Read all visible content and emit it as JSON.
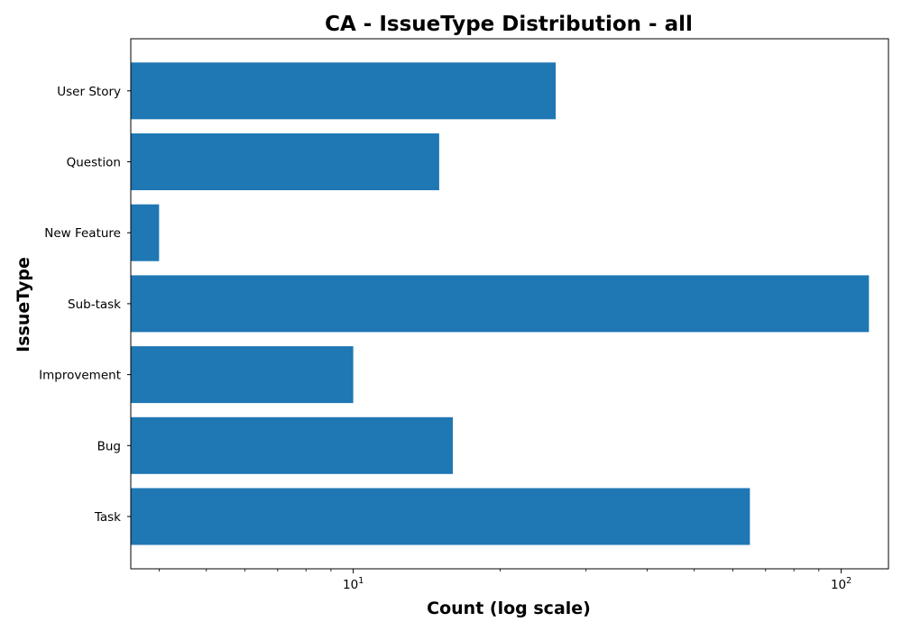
{
  "chart_data": {
    "type": "bar",
    "orientation": "horizontal",
    "title": "CA - IssueType Distribution - all",
    "xlabel": "Count (log scale)",
    "ylabel": "IssueType",
    "xscale": "log",
    "xlim": [
      3.5,
      125
    ],
    "x_ticks": [
      {
        "base": "10",
        "exp": "1",
        "value": 10
      },
      {
        "base": "10",
        "exp": "2",
        "value": 100
      }
    ],
    "grid": false,
    "categories": [
      "Task",
      "Bug",
      "Improvement",
      "Sub-task",
      "New Feature",
      "Question",
      "User Story"
    ],
    "values": [
      65,
      16,
      10,
      114,
      4,
      15,
      26
    ],
    "bar_color": "#1f77b4"
  }
}
